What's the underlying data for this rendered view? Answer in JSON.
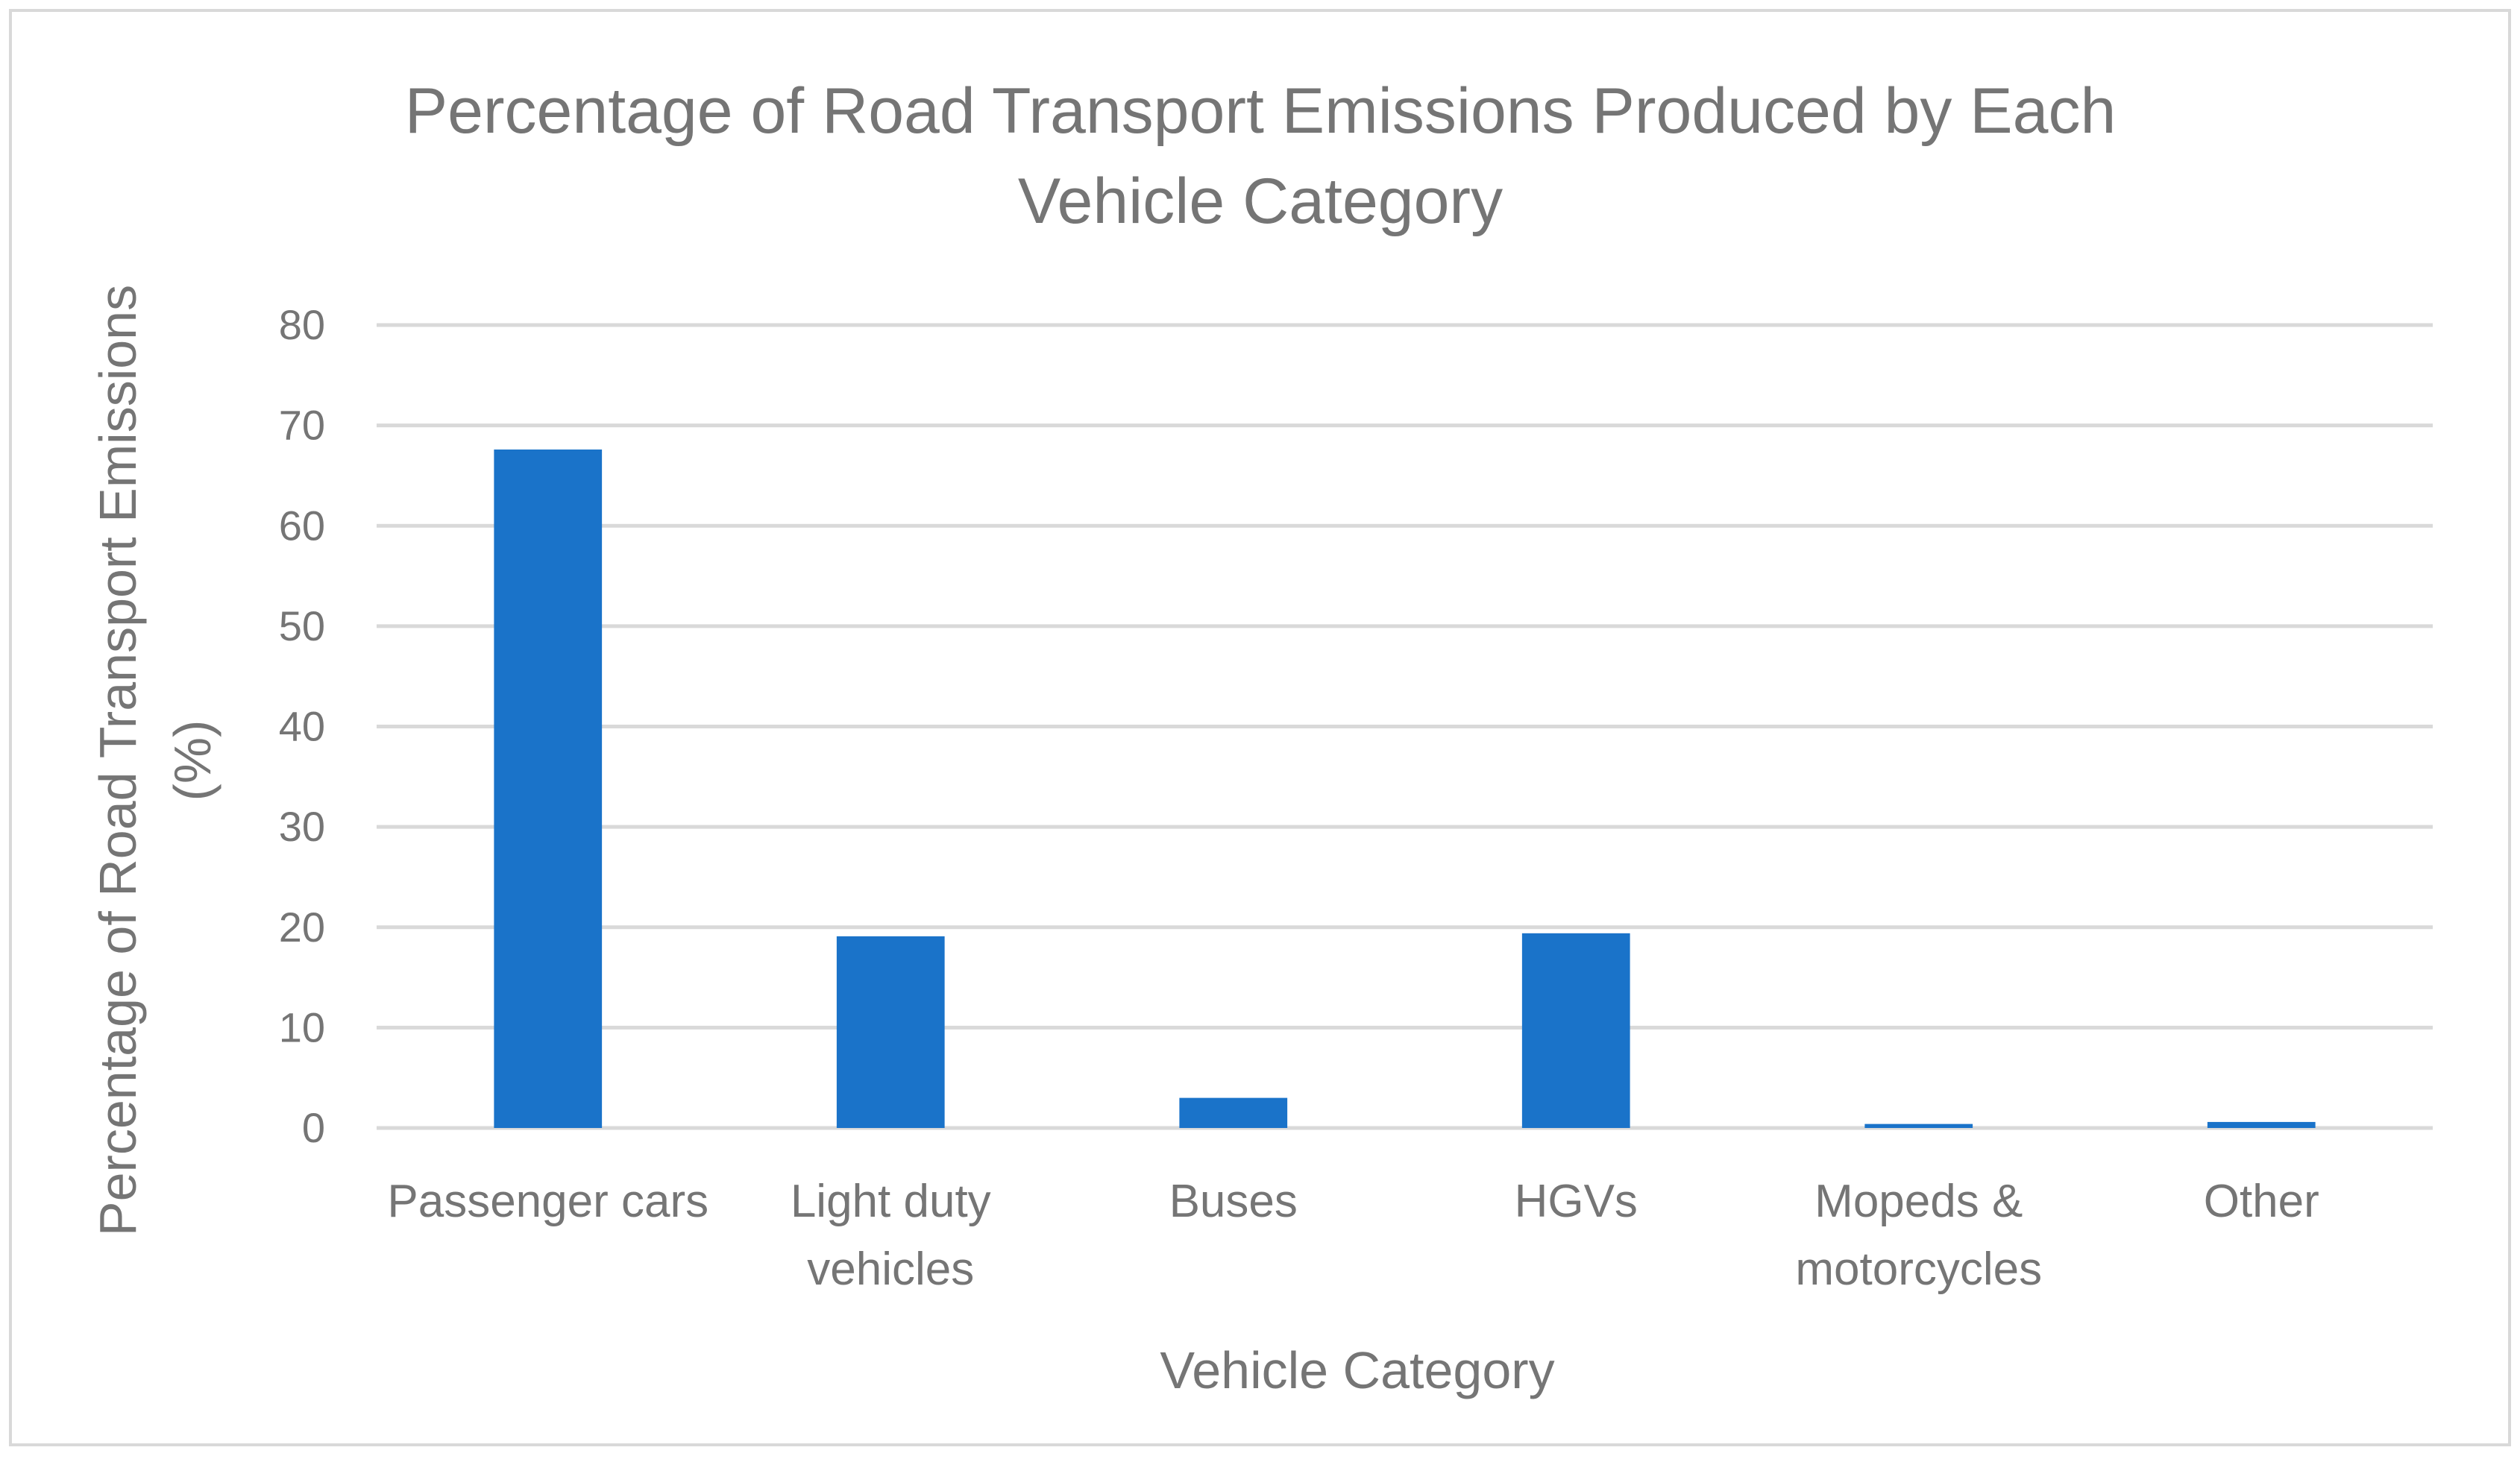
{
  "chart_data": {
    "type": "bar",
    "title_lines": [
      "Percentage of Road Transport Emissions Produced by Each",
      "Vehicle Category"
    ],
    "xlabel": "Vehicle Category",
    "ylabel_lines": [
      "Percentage of Road Transport Emissions",
      "(%)"
    ],
    "categories": [
      [
        "Passenger cars"
      ],
      [
        "Light duty",
        "vehicles"
      ],
      [
        "Buses"
      ],
      [
        "HGVs"
      ],
      [
        "Mopeds &",
        "motorcycles"
      ],
      [
        "Other"
      ]
    ],
    "values": [
      67.6,
      19.1,
      3.0,
      19.4,
      0.4,
      0.6
    ],
    "ylim": [
      0,
      80
    ],
    "yticks": [
      "0",
      "10",
      "20",
      "30",
      "40",
      "50",
      "60",
      "70",
      "80"
    ],
    "grid": true,
    "legend": "none",
    "colors": {
      "bar": "#1a73c9",
      "grid": "#d9d9d9",
      "text": "#757575",
      "border": "#d9d9d9"
    }
  }
}
